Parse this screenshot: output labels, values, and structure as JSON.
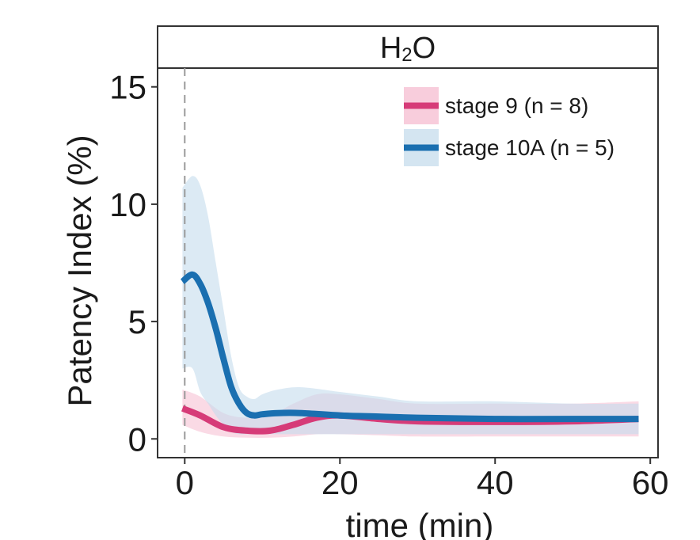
{
  "chart_data": {
    "type": "line",
    "panel_title": "H2O",
    "panel_title_main": "H",
    "panel_title_sub": "2",
    "panel_title_end": "O",
    "xlabel": "time (min)",
    "ylabel": "Patency Index (%)",
    "xlim": [
      -3.5,
      61
    ],
    "ylim": [
      -0.8,
      15.8
    ],
    "xticks": [
      0,
      20,
      40,
      60
    ],
    "xtick_labels": [
      "0",
      "20",
      "40",
      "60"
    ],
    "yticks": [
      0,
      5,
      10,
      15
    ],
    "ytick_labels": [
      "0",
      "5",
      "10",
      "15"
    ],
    "vline_x": 0,
    "legend_position": "top-right",
    "series": [
      {
        "name": "stage 9 (n = 8)",
        "color": "#D63B78",
        "band_color": "#F5BCD0",
        "x": [
          -0.3,
          2,
          5,
          8,
          11,
          14,
          17,
          20,
          25,
          30,
          40,
          50,
          58.5
        ],
        "mean": [
          1.3,
          1.0,
          0.5,
          0.35,
          0.35,
          0.6,
          0.9,
          1.0,
          0.85,
          0.75,
          0.72,
          0.75,
          0.85
        ],
        "lower": [
          0.6,
          0.3,
          0.1,
          0.05,
          0.05,
          0.1,
          0.2,
          0.2,
          0.15,
          0.1,
          0.1,
          0.1,
          0.1
        ],
        "upper": [
          2.1,
          1.8,
          1.1,
          0.9,
          1.0,
          1.5,
          1.9,
          1.9,
          1.7,
          1.5,
          1.5,
          1.5,
          1.6
        ]
      },
      {
        "name": "stage 10A (n = 5)",
        "color": "#1A6FB0",
        "band_color": "#C5DCEC",
        "x": [
          -0.3,
          1,
          2,
          3,
          4,
          5,
          6,
          7,
          8,
          9,
          10,
          12,
          15,
          20,
          25,
          30,
          40,
          50,
          58.5
        ],
        "mean": [
          6.7,
          7.0,
          6.6,
          5.8,
          4.7,
          3.4,
          2.2,
          1.5,
          1.1,
          1.0,
          1.05,
          1.1,
          1.1,
          1.0,
          0.95,
          0.9,
          0.85,
          0.85,
          0.85
        ],
        "lower": [
          3.0,
          3.0,
          2.0,
          1.5,
          1.0,
          0.6,
          0.3,
          0.2,
          0.2,
          0.2,
          0.2,
          0.2,
          0.2,
          0.2,
          0.2,
          0.2,
          0.2,
          0.2,
          0.2
        ],
        "upper": [
          10.7,
          11.2,
          10.8,
          9.5,
          7.5,
          5.5,
          3.5,
          2.2,
          1.8,
          1.7,
          1.9,
          2.1,
          2.2,
          2.0,
          1.8,
          1.6,
          1.6,
          1.5,
          1.5
        ]
      }
    ]
  }
}
